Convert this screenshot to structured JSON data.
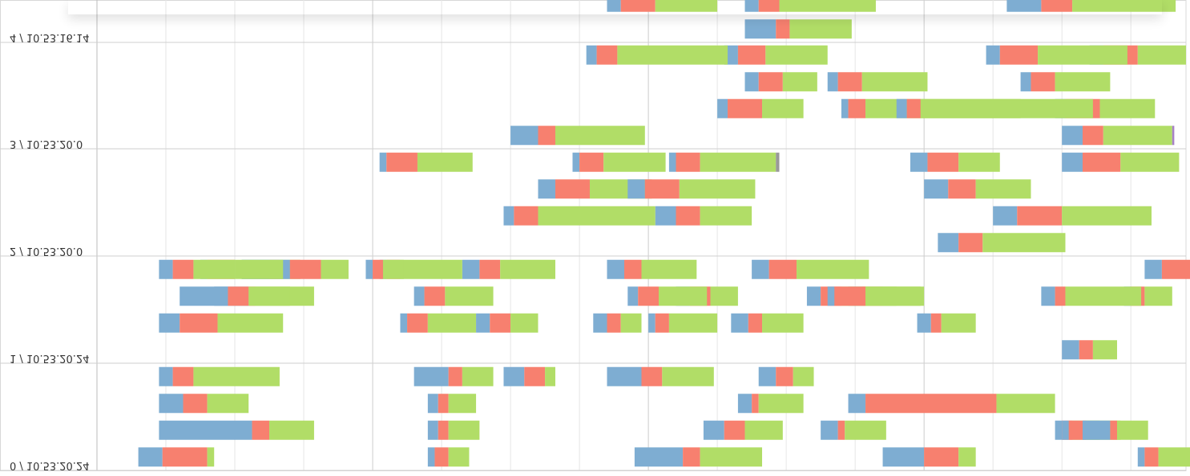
{
  "chart_data": {
    "type": "bar",
    "subtype": "timeline-gantt",
    "flipped": "upside-down",
    "x": {
      "min": 0,
      "max": 158,
      "grid": true
    },
    "segment_colors": {
      "a": "#7eadd2",
      "b": "#f7806f",
      "c": "#b1dd67",
      "d": "#a781c6",
      "e": "#f2e055"
    },
    "rows": [
      {
        "label": "0 / 10.53.20.24",
        "lanes": [
          [
            [
              6,
              3.5,
              6.5,
              1,
              0,
              0
            ],
            [
              48,
              1,
              2,
              3,
              0,
              0
            ],
            [
              78,
              7,
              2.5,
              9,
              0,
              0
            ],
            [
              114,
              6,
              5,
              2.5,
              0,
              0
            ],
            [
              151,
              1,
              2,
              11.5,
              0,
              0
            ]
          ],
          [
            [
              9,
              13.5,
              2.5,
              6.5,
              0,
              0
            ],
            [
              48,
              1.5,
              1.5,
              4.5,
              0,
              0
            ],
            [
              88,
              3,
              3,
              5.5,
              0,
              0
            ],
            [
              105,
              2.5,
              1,
              6,
              0,
              0
            ],
            [
              139,
              1,
              1.5,
              4,
              0,
              0
            ],
            [
              140,
              1,
              2.5,
              5,
              0,
              0
            ],
            [
              143,
              4,
              1,
              4.5,
              0,
              0
            ]
          ],
          [
            [
              9,
              3.5,
              3.5,
              6,
              0,
              0
            ],
            [
              48,
              1.5,
              1.5,
              4,
              0,
              0
            ],
            [
              93,
              2,
              1,
              6.5,
              0,
              0
            ],
            [
              109,
              2.5,
              19,
              8.5,
              0,
              0
            ],
            [
              159,
              5,
              4,
              7,
              0,
              0
            ]
          ],
          [
            [
              9,
              2,
              3,
              12.5,
              0,
              0
            ],
            [
              59,
              3,
              3,
              1.5,
              0,
              0
            ],
            [
              46,
              5,
              2,
              4.5,
              0,
              0
            ],
            [
              96,
              2.5,
              2.5,
              3,
              0,
              0
            ],
            [
              74,
              5,
              3,
              7.5,
              0,
              0
            ]
          ]
        ]
      },
      {
        "label": "1 / 10.53.20.24",
        "lanes": [
          [
            [
              140,
              2.5,
              2,
              3.5,
              0,
              0
            ]
          ],
          [
            [
              9,
              3,
              5.5,
              9.5,
              0,
              0
            ],
            [
              44,
              1,
              3,
              7,
              0,
              0
            ],
            [
              55,
              2,
              3,
              4,
              0,
              0
            ],
            [
              72,
              2,
              2,
              3,
              0,
              0
            ],
            [
              80,
              1,
              2,
              7,
              0,
              0
            ],
            [
              119,
              2,
              1.5,
              5,
              0,
              0
            ],
            [
              92,
              2.5,
              2,
              6,
              0,
              0
            ]
          ],
          [
            [
              149,
              1,
              2,
              4,
              0,
              0
            ],
            [
              137,
              2,
              1.5,
              11,
              0,
              0
            ],
            [
              109,
              2,
              3,
              6,
              0,
              0
            ],
            [
              103,
              2,
              3,
              8,
              0,
              0
            ],
            [
              106,
              1,
              4.5,
              8,
              0,
              0
            ],
            [
              84,
              2,
              3,
              4,
              0,
              0
            ],
            [
              77,
              1.5,
              3,
              7,
              0,
              0
            ],
            [
              46,
              1.5,
              3,
              7,
              0,
              0
            ],
            [
              12,
              10,
              1,
              8.5,
              0,
              0
            ],
            [
              17,
              2,
              3,
              6,
              0,
              0
            ]
          ],
          [
            [
              152,
              2.5,
              6,
              6.5,
              0,
              0
            ],
            [
              95,
              2.5,
              4,
              10.5,
              0,
              0
            ],
            [
              74,
              2.5,
              2.5,
              8,
              0,
              0
            ],
            [
              53,
              2.5,
              3,
              8,
              0,
              0
            ],
            [
              41,
              1,
              2,
              9,
              0,
              0
            ],
            [
              39,
              1,
              1.5,
              3,
              0,
              0
            ],
            [
              21,
              4,
              1.5,
              3,
              0,
              0
            ],
            [
              21,
              7,
              4.5,
              4,
              0,
              0
            ],
            [
              15,
              1,
              4,
              7,
              0,
              0
            ],
            [
              9,
              2,
              3,
              6,
              0,
              0
            ]
          ]
        ]
      },
      {
        "label": "2 / 10.53.20.0",
        "lanes": [
          [
            [
              122,
              3,
              3.5,
              12,
              0,
              0
            ]
          ],
          [
            [
              130,
              3.5,
              6.5,
              13,
              0,
              0
            ],
            [
              81,
              3,
              3.5,
              7.5,
              0,
              0
            ],
            [
              59,
              1.5,
              3.5,
              17,
              0,
              0
            ]
          ],
          [
            [
              120,
              3.5,
              4,
              8,
              0,
              0
            ],
            [
              64,
              2.5,
              5,
              9,
              0,
              0
            ],
            [
              77,
              2.5,
              5,
              11,
              0,
              0
            ]
          ],
          [
            [
              140,
              3,
              5.5,
              8.5,
              0,
              0
            ],
            [
              118,
              2.5,
              4.5,
              6,
              0,
              0
            ],
            [
              83,
              1,
              3.5,
              11,
              0,
              0,
              0.5
            ],
            [
              69,
              1,
              3.5,
              9,
              0,
              0
            ],
            [
              41,
              1,
              4.5,
              8,
              0,
              0
            ]
          ]
        ]
      },
      {
        "label": "3 / 10.53.20.0",
        "lanes": [
          [
            [
              140,
              3,
              3,
              10,
              0.3,
              0
            ],
            [
              60,
              4,
              2.5,
              13,
              0,
              0
            ]
          ],
          [
            [
              139,
              1.5,
              5,
              8,
              0,
              0
            ],
            [
              108,
              1,
              2.5,
              22.5,
              0,
              0
            ],
            [
              90,
              1.5,
              5,
              6,
              0,
              0
            ],
            [
              116,
              1.5,
              2,
              25,
              0,
              0
            ]
          ],
          [
            [
              134,
              1.5,
              3.5,
              8,
              0,
              0
            ],
            [
              106,
              1.5,
              3.5,
              9.5,
              0,
              0
            ],
            [
              94,
              2,
              3.5,
              5,
              0,
              0
            ]
          ],
          [
            [
              144,
              2,
              5,
              7,
              0,
              0
            ],
            [
              129,
              2,
              5.5,
              13,
              0,
              0
            ],
            [
              91,
              2,
              4,
              9,
              0,
              0
            ],
            [
              71,
              1.5,
              3,
              16,
              0,
              0
            ]
          ]
        ]
      },
      {
        "label": "4 / 10.53.16.14",
        "lanes": [
          [
            [
              94,
              4.5,
              2,
              9,
              0,
              0
            ]
          ],
          [
            [
              132,
              5,
              4.5,
              15,
              0,
              0
            ],
            [
              94,
              2,
              3,
              14,
              0,
              0
            ],
            [
              74,
              2,
              5,
              9,
              0,
              0
            ]
          ]
        ]
      }
    ]
  }
}
